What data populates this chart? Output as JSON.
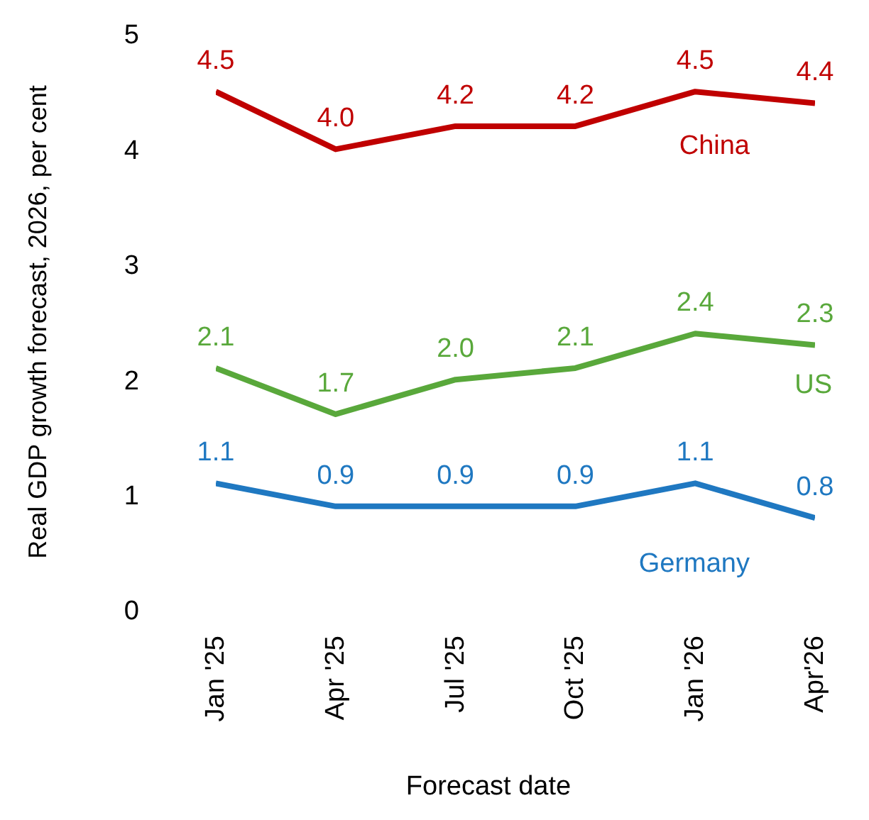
{
  "chart_data": {
    "type": "line",
    "xlabel": "Forecast date",
    "ylabel": "Real GDP growth forecast, 2026, per cent",
    "categories": [
      "Jan '25",
      "Apr '25",
      "Jul '25",
      "Oct '25",
      "Jan '26",
      "Apr'26"
    ],
    "series": [
      {
        "name": "China",
        "color": "#c00000",
        "values": [
          4.5,
          4.0,
          4.2,
          4.2,
          4.5,
          4.4
        ],
        "value_labels": [
          "4.5",
          "4.0",
          "4.2",
          "4.2",
          "4.5",
          "4.4"
        ]
      },
      {
        "name": "US",
        "color": "#59a83b",
        "values": [
          2.1,
          1.7,
          2.0,
          2.1,
          2.4,
          2.3
        ],
        "value_labels": [
          "2.1",
          "1.7",
          "2.0",
          "2.1",
          "2.4",
          "2.3"
        ]
      },
      {
        "name": "Germany",
        "color": "#1f78c1",
        "values": [
          1.1,
          0.9,
          0.9,
          0.9,
          1.1,
          0.8
        ],
        "value_labels": [
          "1.1",
          "0.9",
          "0.9",
          "0.9",
          "1.1",
          "0.8"
        ]
      }
    ],
    "ylim": [
      0,
      5
    ],
    "yticks": [
      0,
      1,
      2,
      3,
      4,
      5
    ],
    "grid": false,
    "legend": false,
    "marker": "none",
    "line_style": "solid"
  }
}
